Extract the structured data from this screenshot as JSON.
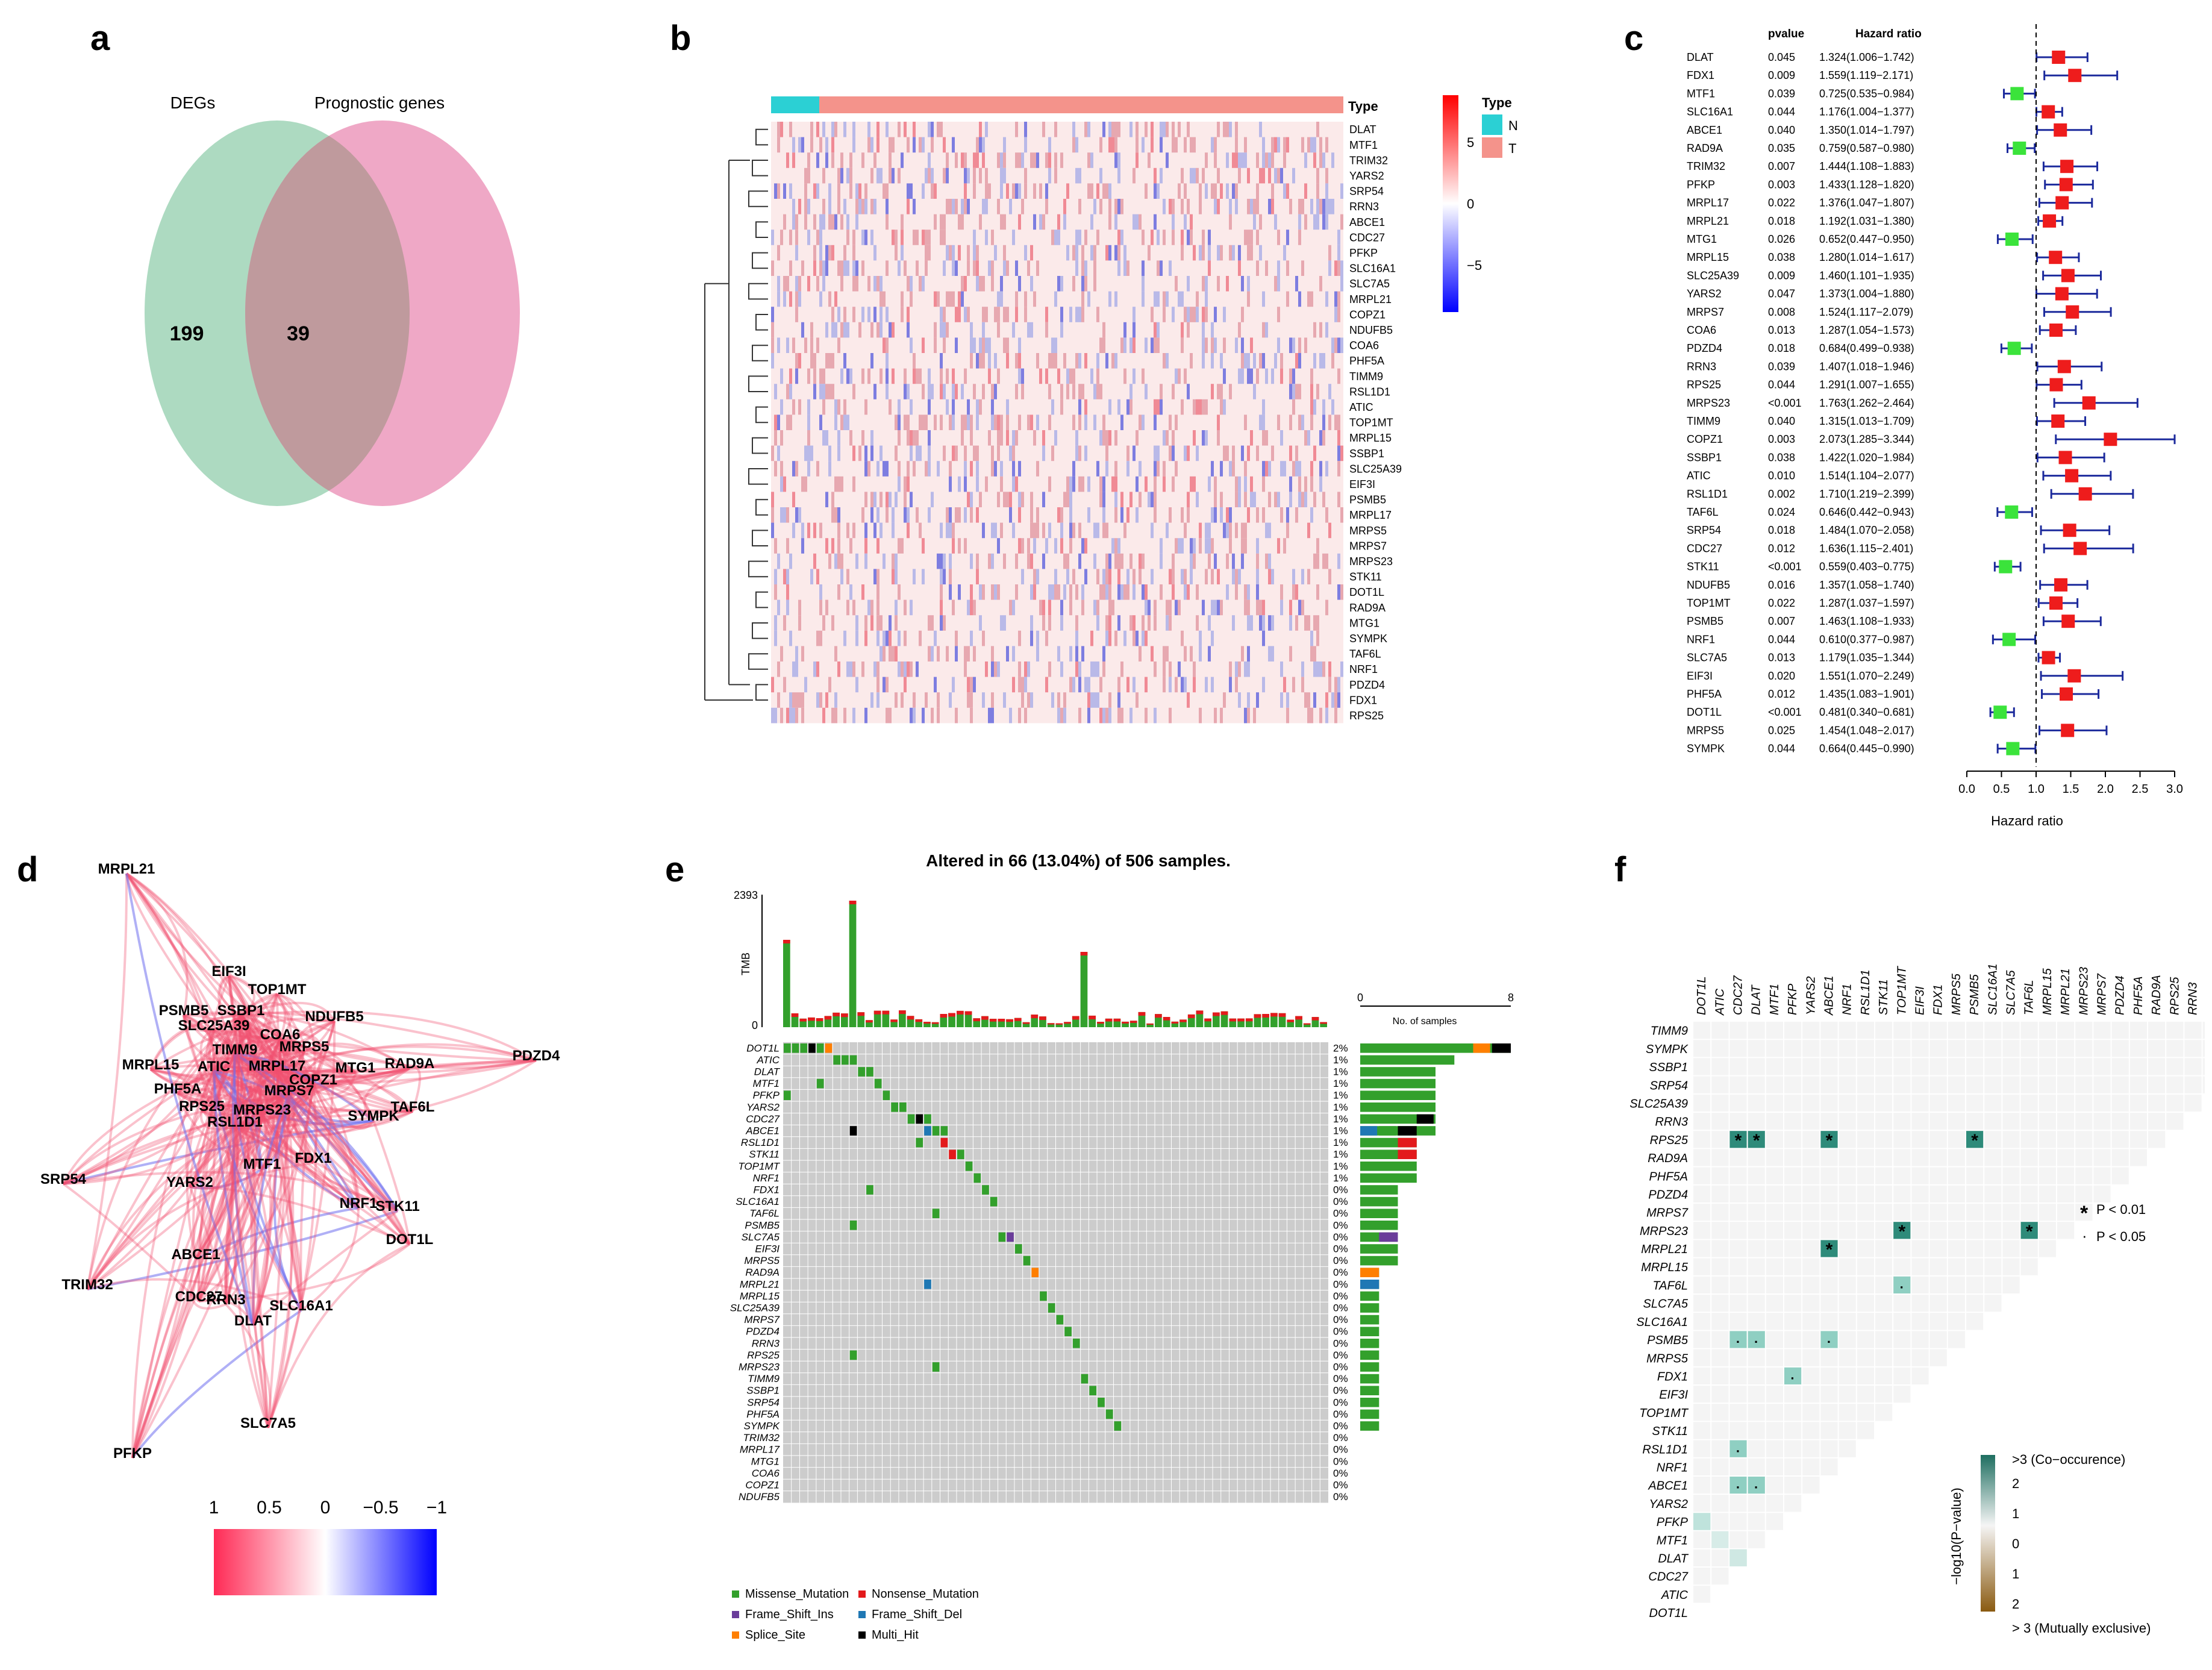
{
  "panels": {
    "a": "a",
    "b": "b",
    "c": "c",
    "d": "d",
    "e": "e",
    "f": "f"
  },
  "venn": {
    "left_label": "DEGs",
    "right_label": "Prognostic genes",
    "left_only": "199",
    "intersection": "39",
    "colors": {
      "left": "#a9d8be",
      "right": "#eea3c3",
      "overlap": "#bf9a9d"
    }
  },
  "heatmap": {
    "genes": [
      "DLAT",
      "MTF1",
      "TRIM32",
      "YARS2",
      "SRP54",
      "RRN3",
      "ABCE1",
      "CDC27",
      "PFKP",
      "SLC16A1",
      "SLC7A5",
      "MRPL21",
      "COPZ1",
      "NDUFB5",
      "COA6",
      "PHF5A",
      "TIMM9",
      "RSL1D1",
      "ATIC",
      "TOP1MT",
      "MRPL15",
      "SSBP1",
      "SLC25A39",
      "EIF3I",
      "PSMB5",
      "MRPL17",
      "MRPS5",
      "MRPS7",
      "MRPS23",
      "STK11",
      "DOT1L",
      "RAD9A",
      "MTG1",
      "SYMPK",
      "TAF6L",
      "NRF1",
      "PDZD4",
      "FDX1",
      "RPS25"
    ],
    "type_label": "Type",
    "legend_title": "Type",
    "legend_items": [
      {
        "label": "N",
        "color": "#2bd0d4"
      },
      {
        "label": "T",
        "color": "#f4938b"
      }
    ],
    "scale_ticks": [
      "5",
      "0",
      "−5"
    ],
    "scale_values": [
      5,
      0,
      -5
    ]
  },
  "forest": {
    "col_pvalue": "pvalue",
    "col_hr": "Hazard ratio",
    "xlabel": "Hazard ratio",
    "xticks": [
      "0.0",
      "0.5",
      "1.0",
      "1.5",
      "2.0",
      "2.5",
      "3.0"
    ],
    "xrange": [
      0,
      3.0
    ],
    "rows": [
      {
        "gene": "DLAT",
        "p": "0.045",
        "text": "1.324(1.006−1.742)",
        "hr": 1.324,
        "lo": 1.006,
        "hi": 1.742
      },
      {
        "gene": "FDX1",
        "p": "0.009",
        "text": "1.559(1.119−2.171)",
        "hr": 1.559,
        "lo": 1.119,
        "hi": 2.171
      },
      {
        "gene": "MTF1",
        "p": "0.039",
        "text": "0.725(0.535−0.984)",
        "hr": 0.725,
        "lo": 0.535,
        "hi": 0.984
      },
      {
        "gene": "SLC16A1",
        "p": "0.044",
        "text": "1.176(1.004−1.377)",
        "hr": 1.176,
        "lo": 1.004,
        "hi": 1.377
      },
      {
        "gene": "ABCE1",
        "p": "0.040",
        "text": "1.350(1.014−1.797)",
        "hr": 1.35,
        "lo": 1.014,
        "hi": 1.797
      },
      {
        "gene": "RAD9A",
        "p": "0.035",
        "text": "0.759(0.587−0.980)",
        "hr": 0.759,
        "lo": 0.587,
        "hi": 0.98
      },
      {
        "gene": "TRIM32",
        "p": "0.007",
        "text": "1.444(1.108−1.883)",
        "hr": 1.444,
        "lo": 1.108,
        "hi": 1.883
      },
      {
        "gene": "PFKP",
        "p": "0.003",
        "text": "1.433(1.128−1.820)",
        "hr": 1.433,
        "lo": 1.128,
        "hi": 1.82
      },
      {
        "gene": "MRPL17",
        "p": "0.022",
        "text": "1.376(1.047−1.807)",
        "hr": 1.376,
        "lo": 1.047,
        "hi": 1.807
      },
      {
        "gene": "MRPL21",
        "p": "0.018",
        "text": "1.192(1.031−1.380)",
        "hr": 1.192,
        "lo": 1.031,
        "hi": 1.38
      },
      {
        "gene": "MTG1",
        "p": "0.026",
        "text": "0.652(0.447−0.950)",
        "hr": 0.652,
        "lo": 0.447,
        "hi": 0.95
      },
      {
        "gene": "MRPL15",
        "p": "0.038",
        "text": "1.280(1.014−1.617)",
        "hr": 1.28,
        "lo": 1.014,
        "hi": 1.617
      },
      {
        "gene": "SLC25A39",
        "p": "0.009",
        "text": "1.460(1.101−1.935)",
        "hr": 1.46,
        "lo": 1.101,
        "hi": 1.935
      },
      {
        "gene": "YARS2",
        "p": "0.047",
        "text": "1.373(1.004−1.880)",
        "hr": 1.373,
        "lo": 1.004,
        "hi": 1.88
      },
      {
        "gene": "MRPS7",
        "p": "0.008",
        "text": "1.524(1.117−2.079)",
        "hr": 1.524,
        "lo": 1.117,
        "hi": 2.079
      },
      {
        "gene": "COA6",
        "p": "0.013",
        "text": "1.287(1.054−1.573)",
        "hr": 1.287,
        "lo": 1.054,
        "hi": 1.573
      },
      {
        "gene": "PDZD4",
        "p": "0.018",
        "text": "0.684(0.499−0.938)",
        "hr": 0.684,
        "lo": 0.499,
        "hi": 0.938
      },
      {
        "gene": "RRN3",
        "p": "0.039",
        "text": "1.407(1.018−1.946)",
        "hr": 1.407,
        "lo": 1.018,
        "hi": 1.946
      },
      {
        "gene": "RPS25",
        "p": "0.044",
        "text": "1.291(1.007−1.655)",
        "hr": 1.291,
        "lo": 1.007,
        "hi": 1.655
      },
      {
        "gene": "MRPS23",
        "p": "<0.001",
        "text": "1.763(1.262−2.464)",
        "hr": 1.763,
        "lo": 1.262,
        "hi": 2.464
      },
      {
        "gene": "TIMM9",
        "p": "0.040",
        "text": "1.315(1.013−1.709)",
        "hr": 1.315,
        "lo": 1.013,
        "hi": 1.709
      },
      {
        "gene": "COPZ1",
        "p": "0.003",
        "text": "2.073(1.285−3.344)",
        "hr": 2.073,
        "lo": 1.285,
        "hi": 3.344
      },
      {
        "gene": "SSBP1",
        "p": "0.038",
        "text": "1.422(1.020−1.984)",
        "hr": 1.422,
        "lo": 1.02,
        "hi": 1.984
      },
      {
        "gene": "ATIC",
        "p": "0.010",
        "text": "1.514(1.104−2.077)",
        "hr": 1.514,
        "lo": 1.104,
        "hi": 2.077
      },
      {
        "gene": "RSL1D1",
        "p": "0.002",
        "text": "1.710(1.219−2.399)",
        "hr": 1.71,
        "lo": 1.219,
        "hi": 2.399
      },
      {
        "gene": "TAF6L",
        "p": "0.024",
        "text": "0.646(0.442−0.943)",
        "hr": 0.646,
        "lo": 0.442,
        "hi": 0.943
      },
      {
        "gene": "SRP54",
        "p": "0.018",
        "text": "1.484(1.070−2.058)",
        "hr": 1.484,
        "lo": 1.07,
        "hi": 2.058
      },
      {
        "gene": "CDC27",
        "p": "0.012",
        "text": "1.636(1.115−2.401)",
        "hr": 1.636,
        "lo": 1.115,
        "hi": 2.401
      },
      {
        "gene": "STK11",
        "p": "<0.001",
        "text": "0.559(0.403−0.775)",
        "hr": 0.559,
        "lo": 0.403,
        "hi": 0.775
      },
      {
        "gene": "NDUFB5",
        "p": "0.016",
        "text": "1.357(1.058−1.740)",
        "hr": 1.357,
        "lo": 1.058,
        "hi": 1.74
      },
      {
        "gene": "TOP1MT",
        "p": "0.022",
        "text": "1.287(1.037−1.597)",
        "hr": 1.287,
        "lo": 1.037,
        "hi": 1.597
      },
      {
        "gene": "PSMB5",
        "p": "0.007",
        "text": "1.463(1.108−1.933)",
        "hr": 1.463,
        "lo": 1.108,
        "hi": 1.933
      },
      {
        "gene": "NRF1",
        "p": "0.044",
        "text": "0.610(0.377−0.987)",
        "hr": 0.61,
        "lo": 0.377,
        "hi": 0.987
      },
      {
        "gene": "SLC7A5",
        "p": "0.013",
        "text": "1.179(1.035−1.344)",
        "hr": 1.179,
        "lo": 1.035,
        "hi": 1.344
      },
      {
        "gene": "EIF3I",
        "p": "0.020",
        "text": "1.551(1.070−2.249)",
        "hr": 1.551,
        "lo": 1.07,
        "hi": 2.249
      },
      {
        "gene": "PHF5A",
        "p": "0.012",
        "text": "1.435(1.083−1.901)",
        "hr": 1.435,
        "lo": 1.083,
        "hi": 1.901
      },
      {
        "gene": "DOT1L",
        "p": "<0.001",
        "text": "0.481(0.340−0.681)",
        "hr": 0.481,
        "lo": 0.34,
        "hi": 0.681
      },
      {
        "gene": "MRPS5",
        "p": "0.025",
        "text": "1.454(1.048−2.017)",
        "hr": 1.454,
        "lo": 1.048,
        "hi": 2.017
      },
      {
        "gene": "SYMPK",
        "p": "0.044",
        "text": "0.664(0.445−0.990)",
        "hr": 0.664,
        "lo": 0.445,
        "hi": 0.99
      }
    ]
  },
  "network": {
    "nodes": [
      "MRPL21",
      "EIF3I",
      "TOP1MT",
      "PSMB5",
      "SSBP1",
      "NDUFB5",
      "SLC25A39",
      "COA6",
      "TIMM9",
      "MRPS5",
      "PDZD4",
      "MRPL15",
      "ATIC",
      "MRPL17",
      "COPZ1",
      "MTG1",
      "RAD9A",
      "PHF5A",
      "MRPS7",
      "TAF6L",
      "RPS25",
      "MRPS23",
      "RSL1D1",
      "SYMPK",
      "MTF1",
      "FDX1",
      "SRP54",
      "YARS2",
      "NRF1",
      "STK11",
      "DOT1L",
      "ABCE1",
      "TRIM32",
      "CDC27",
      "RRN3",
      "SLC16A1",
      "DLAT",
      "SLC7A5",
      "PFKP"
    ],
    "scale_ticks": [
      "1",
      "0.5",
      "0",
      "−0.5",
      "−1"
    ],
    "scale_values": [
      1,
      0.5,
      0,
      -0.5,
      -1
    ]
  },
  "oncoplot": {
    "title": "Altered in 66 (13.04%) of 506 samples.",
    "tmb_label": "TMB",
    "tmb_max": "2393",
    "tmb_min": "0",
    "samples_label": "No. of samples",
    "samples_ticks": [
      "0",
      "8"
    ],
    "genes": [
      "DOT1L",
      "ATIC",
      "DLAT",
      "MTF1",
      "PFKP",
      "YARS2",
      "CDC27",
      "ABCE1",
      "RSL1D1",
      "STK11",
      "TOP1MT",
      "NRF1",
      "FDX1",
      "SLC16A1",
      "TAF6L",
      "PSMB5",
      "SLC7A5",
      "EIF3I",
      "MRPS5",
      "RAD9A",
      "MRPL21",
      "MRPL15",
      "SLC25A39",
      "MRPS7",
      "PDZD4",
      "RRN3",
      "RPS25",
      "MRPS23",
      "TIMM9",
      "SSBP1",
      "SRP54",
      "PHF5A",
      "SYMPK",
      "TRIM32",
      "MRPL17",
      "MTG1",
      "COA6",
      "COPZ1",
      "NDUFB5"
    ],
    "percents": [
      "2%",
      "1%",
      "1%",
      "1%",
      "1%",
      "1%",
      "1%",
      "1%",
      "1%",
      "1%",
      "1%",
      "1%",
      "0%",
      "0%",
      "0%",
      "0%",
      "0%",
      "0%",
      "0%",
      "0%",
      "0%",
      "0%",
      "0%",
      "0%",
      "0%",
      "0%",
      "0%",
      "0%",
      "0%",
      "0%",
      "0%",
      "0%",
      "0%",
      "0%",
      "0%",
      "0%",
      "0%",
      "0%",
      "0%"
    ],
    "sample_counts": [
      8,
      5,
      4,
      4,
      4,
      4,
      4,
      4,
      3,
      3,
      3,
      3,
      2,
      2,
      2,
      2,
      2,
      2,
      2,
      1,
      1,
      1,
      1,
      1,
      1,
      1,
      1,
      1,
      1,
      1,
      1,
      1,
      1,
      0,
      0,
      0,
      0,
      0,
      0
    ],
    "legend": [
      {
        "label": "Missense_Mutation",
        "color": "#33a02c"
      },
      {
        "label": "Nonsense_Mutation",
        "color": "#e31a1c"
      },
      {
        "label": "Frame_Shift_Ins",
        "color": "#6a3d9a"
      },
      {
        "label": "Frame_Shift_Del",
        "color": "#1f78b4"
      },
      {
        "label": "Splice_Site",
        "color": "#ff7f00"
      },
      {
        "label": "Multi_Hit",
        "color": "#000000"
      }
    ]
  },
  "cooccurrence": {
    "genes": [
      "DOT1L",
      "ATIC",
      "CDC27",
      "DLAT",
      "MTF1",
      "PFKP",
      "YARS2",
      "ABCE1",
      "NRF1",
      "RSL1D1",
      "STK11",
      "TOP1MT",
      "EIF3I",
      "FDX1",
      "MRPS5",
      "PSMB5",
      "SLC16A1",
      "SLC7A5",
      "TAF6L",
      "MRPL15",
      "MRPL21",
      "MRPS23",
      "MRPS7",
      "PDZD4",
      "PHF5A",
      "RAD9A",
      "RPS25",
      "RRN3",
      "SLC25A39",
      "SRP54",
      "SSBP1",
      "SYMPK",
      "TIMM9"
    ],
    "legend_top": ">3 (Co−occurence)",
    "legend_bottom": "> 3 (Mutually exclusive)",
    "legend_axis": "−log10(P−value)",
    "legend_ticks": [
      "2",
      "1",
      "0",
      "1",
      "2"
    ],
    "sig1_symbol": "*",
    "sig1_label": "P < 0.01",
    "sig2_symbol": "·",
    "sig2_label": "P < 0.05"
  }
}
